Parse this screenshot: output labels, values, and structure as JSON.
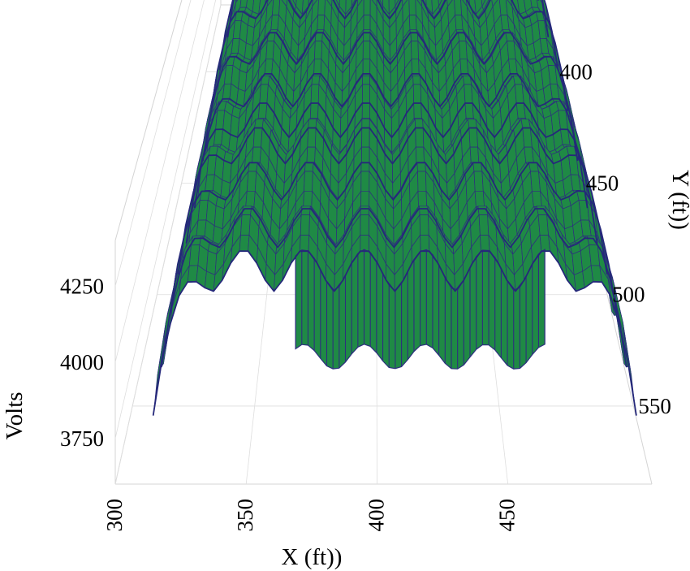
{
  "chart_data": {
    "type": "surface",
    "title": "",
    "xlabel": "X (ft))",
    "ylabel": "Y (ft))",
    "zlabel": "Volts",
    "x_ticks": [
      "300",
      "350",
      "400",
      "450"
    ],
    "y_ticks": [
      "400",
      "450",
      "500",
      "550"
    ],
    "z_ticks": [
      "4250",
      "4000",
      "3750"
    ],
    "xlim": [
      300,
      505
    ],
    "ylim": [
      370,
      585
    ],
    "zlim": [
      3600,
      4400
    ],
    "grid": true,
    "surface_color": "#1f8a45",
    "wire_color": "#2d2f7e",
    "surface": {
      "x_start": 312,
      "x_end": 502,
      "y_start": 378,
      "y_end": 570,
      "ridge_count_x": 8,
      "ridge_period_y": 24,
      "base_volts": 3880,
      "peak_volts": 4350,
      "step_x_range": [
        368,
        466
      ],
      "step_y_from": 555
    }
  }
}
